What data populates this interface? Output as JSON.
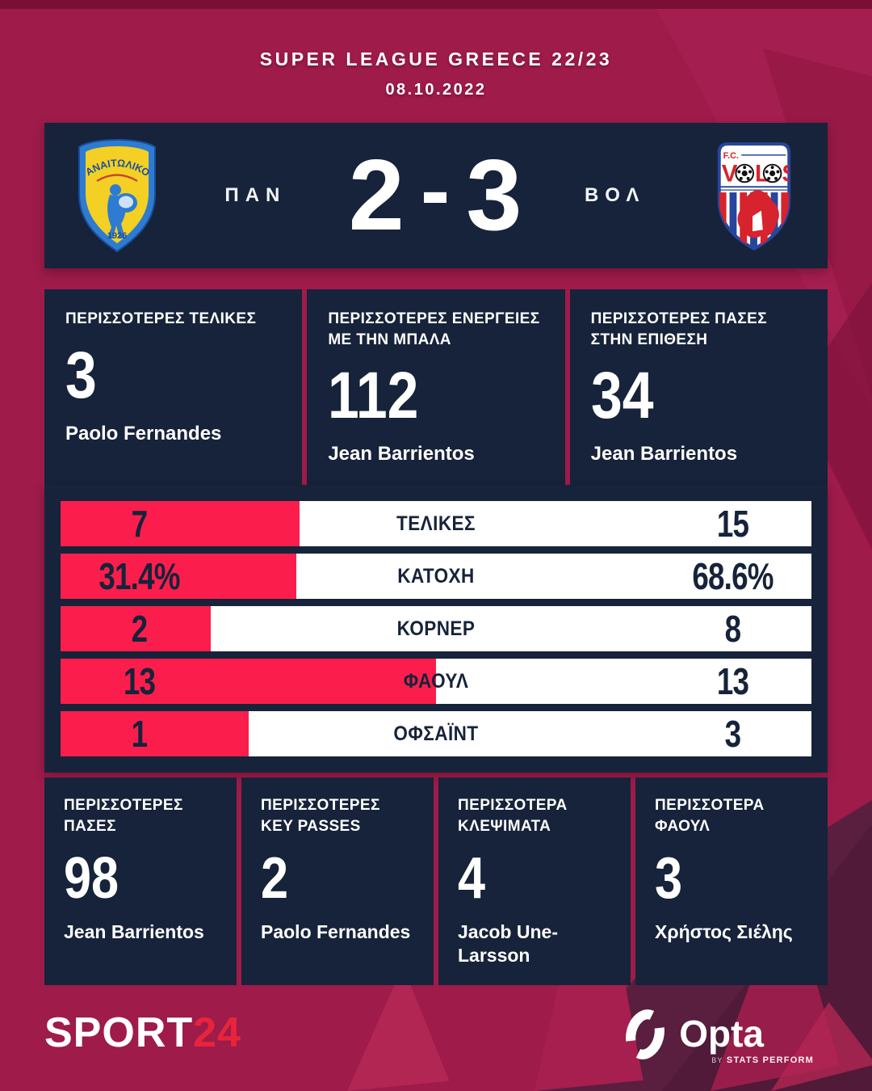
{
  "header": {
    "title": "SUPER LEAGUE GREECE 22/23",
    "date": "08.10.2022"
  },
  "scoreboard": {
    "home_code": "ΠΑΝ",
    "away_code": "ΒΟΛ",
    "home_score": "2",
    "separator": "-",
    "away_score": "3"
  },
  "logos": {
    "home": {
      "club_name": "ΠΑΝΑΙΤΩΛΙΚΟΣ",
      "founded": "1926"
    },
    "away": {
      "prefix": "F.C.",
      "letter_v": "V",
      "letter_l": "L",
      "letter_s": "S"
    }
  },
  "top_stats": [
    {
      "label": "ΠΕΡΙΣΣΟΤΕΡΕΣ ΤΕΛΙΚΕΣ",
      "value": "3",
      "player": "Paolo Fernandes"
    },
    {
      "label": "ΠΕΡΙΣΣΟΤΕΡΕΣ ΕΝΕΡΓΕΙΕΣ ΜΕ ΤΗΝ ΜΠΑΛΑ",
      "value": "112",
      "player": "Jean Barrientos"
    },
    {
      "label": "ΠΕΡΙΣΣΟΤΕΡΕΣ ΠΑΣΕΣ ΣΤΗΝ ΕΠΙΘΕΣΗ",
      "value": "34",
      "player": "Jean Barrientos"
    }
  ],
  "chart_data": {
    "type": "bar",
    "orientation": "horizontal opposed shares, home share filled red from left over white track",
    "categories": [
      "ΤΕΛΙΚΕΣ",
      "ΚΑΤΟΧΗ",
      "ΚΟΡΝΕΡ",
      "ΦΑΟΥΛ",
      "ΟΦΣΑΪΝΤ"
    ],
    "series": [
      {
        "name": "ΠΑΝ",
        "values": [
          7,
          31.4,
          2,
          13,
          1
        ],
        "display": [
          "7",
          "31.4%",
          "2",
          "13",
          "1"
        ]
      },
      {
        "name": "ΒΟΛ",
        "values": [
          15,
          68.6,
          8,
          13,
          3
        ],
        "display": [
          "15",
          "68.6%",
          "8",
          "13",
          "3"
        ]
      }
    ],
    "legend_position": "none",
    "grid": false
  },
  "bottom_stats": [
    {
      "label": "ΠΕΡΙΣΣΟΤΕΡΕΣ ΠΑΣΕΣ",
      "value": "98",
      "player": "Jean Barrientos"
    },
    {
      "label": "ΠΕΡΙΣΣΟΤΕΡΕΣ KEY PASSES",
      "value": "2",
      "player": "Paolo Fernandes"
    },
    {
      "label": "ΠΕΡΙΣΣΟΤΕΡΑ ΚΛΕΨΙΜΑΤΑ",
      "value": "4",
      "player": "Jacob Une-Larsson"
    },
    {
      "label": "ΠΕΡΙΣΣΟΤΕΡΑ ΦΑΟΥΛ",
      "value": "3",
      "player": "Χρήστος Σιέλης"
    }
  ],
  "footer": {
    "brand": "SPORT",
    "brand_accent": "24",
    "provider": "Opta",
    "provider_by": "BY",
    "provider_sub": "STATS PERFORM"
  },
  "colors": {
    "background": "#9e1b4a",
    "panel_navy": "#16233a",
    "accent_red": "#fb1e4c",
    "bar_track_white": "#ffffff",
    "text_white": "#ffffff",
    "brand_red": "#e8243c"
  }
}
